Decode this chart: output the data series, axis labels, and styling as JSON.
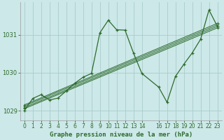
{
  "title": "Graphe pression niveau de la mer (hPa)",
  "bg_color": "#cce8e8",
  "grid_color": "#aacccc",
  "line_color": "#2d6b2d",
  "xlim": [
    -0.5,
    23.5
  ],
  "ylim": [
    1028.75,
    1031.85
  ],
  "yticks": [
    1029,
    1030,
    1031
  ],
  "xticks": [
    0,
    1,
    2,
    3,
    4,
    5,
    6,
    7,
    8,
    9,
    10,
    11,
    12,
    13,
    14,
    16,
    17,
    18,
    19,
    20,
    21,
    22,
    23
  ],
  "zigzag_x": [
    0,
    1,
    2,
    3,
    4,
    5,
    6,
    7,
    8,
    9,
    10,
    11,
    12,
    13,
    14,
    16,
    17,
    18,
    19,
    20,
    21,
    22,
    23
  ],
  "zigzag_y": [
    1029.0,
    1029.32,
    1029.42,
    1029.28,
    1029.33,
    1029.52,
    1029.72,
    1029.88,
    1029.98,
    1031.05,
    1031.38,
    1031.13,
    1031.12,
    1030.52,
    1029.98,
    1029.62,
    1029.22,
    1029.9,
    1030.22,
    1030.52,
    1030.88,
    1031.65,
    1031.22
  ],
  "linear_lines": [
    {
      "x": [
        0,
        23
      ],
      "y": [
        1029.05,
        1031.18
      ]
    },
    {
      "x": [
        0,
        23
      ],
      "y": [
        1029.08,
        1031.22
      ]
    },
    {
      "x": [
        0,
        23
      ],
      "y": [
        1029.12,
        1031.26
      ]
    },
    {
      "x": [
        0,
        23
      ],
      "y": [
        1029.15,
        1031.3
      ]
    }
  ],
  "ylabel_fontsize": 6,
  "xlabel_fontsize": 6.5,
  "tick_fontsize": 5.5
}
